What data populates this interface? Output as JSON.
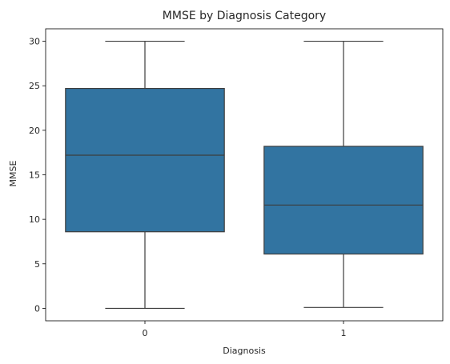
{
  "chart_data": {
    "type": "box",
    "title": "MMSE by Diagnosis Category",
    "xlabel": "Diagnosis",
    "ylabel": "MMSE",
    "categories": [
      "0",
      "1"
    ],
    "boxes": [
      {
        "category": "0",
        "min": 0.0,
        "q1": 8.6,
        "median": 17.2,
        "q3": 24.7,
        "max": 30.0
      },
      {
        "category": "1",
        "min": 0.1,
        "q1": 6.1,
        "median": 11.6,
        "q3": 18.2,
        "max": 30.0
      }
    ],
    "ylim": [
      -1.4,
      31.4
    ],
    "yticks": [
      0,
      5,
      10,
      15,
      20,
      25,
      30
    ],
    "grid": false,
    "box_color": "#3274a1",
    "line_color": "#3d3d3d"
  }
}
